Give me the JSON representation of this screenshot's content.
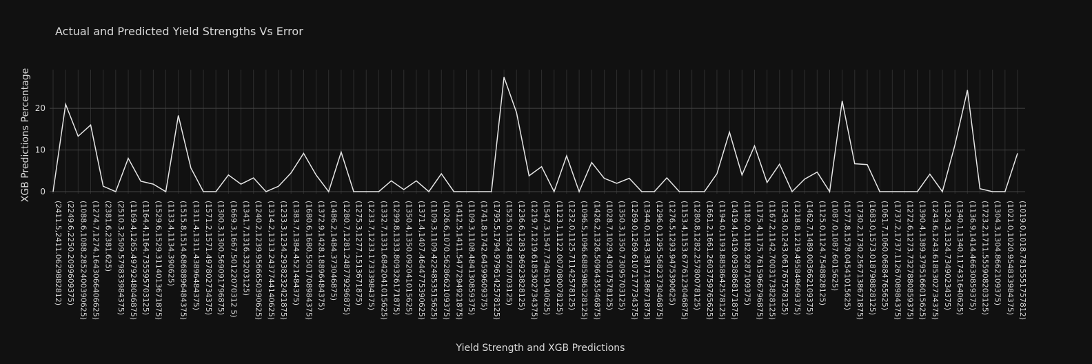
{
  "chart_data": {
    "type": "line",
    "title": "Actual and Predicted Yield Strengths Vs Error",
    "x_label": "Yield Strength and XGB Predictions",
    "y_label": "XGB Predictions Percentage",
    "color": "#e6e6e6",
    "grid": true,
    "ylim": [
      -0.5,
      29.3
    ],
    "yticks": [
      0,
      10,
      20
    ],
    "categories": [
      "(2411.5,2411.0629882812)",
      "(2249.6,2250.2099609375)",
      "(1088.6,1088.2852400390625)",
      "(1274.7,1274.1643066406625)",
      "(2381.6,2381.625)",
      "(2510.3,2509.579833984375)",
      "(1169.4,1265.4979248046875)",
      "(1164.4,1164.735595703125)",
      "(1529.6,1529.3114013671875)",
      "(1133.4,1134.390625)",
      "(1515.8,1514.6868896484375)",
      "(1311.4,1311.43896484375)",
      "(1571.2,1571.497802734375)",
      "(1300.3,1300.569091796875)",
      "(1669.3,1667.50122070312 5)",
      "(1341.7,1316.33203125)",
      "(1240.2,1239.9566650390625)",
      "(1314.2,1313.2437744140625)",
      "(1233.3,1234.2938232421875)",
      "(1383.7,1384.4521484375)",
      "(1680.6,1680.5501708984375)",
      "(1372.9,1428.18896484375)",
      "(1486.2,1484.373046875)",
      "(1280.7,1281.248779296875)",
      "(1275.3,1277.1513671875)",
      "(1233.7,1233.17333984375)",
      "(1332.7,1331.6842041015625)",
      "(1299.8,1333.809326171875)",
      "(1350.4,1350.092041015625)",
      "(1371.4,1407.4644775390625)",
      "(1109.3,1109.4224853515625)",
      "(1026.6,1070.5628662109375)",
      "(1412.5,1411.5477294921875)",
      "(1109.3,1108.484130859375)",
      "(1741.8,1742.64599609375)",
      "(1795.5,1794.9796142578125)",
      "(1525.0,1524.8720703125)",
      "(1236.6,1283.96923828125)",
      "(1219.7,1219.6185302734375)",
      "(1547.3,1547.734619140625)",
      "(1123.1,1122.007080078125)",
      "(1232.0,1125.71142578125)",
      "(1096.5,1096.6885986328125)",
      "(1426.2,1326.5096435546875)",
      "(1028.7,1029.43017578125)",
      "(1350.3,1350.73095703125)",
      "(1269.0,1269.6107177734375)",
      "(1344.0,1343.3817138671875)",
      "(1296.0,1295.5682373046875)",
      "(1276.5,1293.9475390625)",
      "(1153.4,1153.6776123046875)",
      "(1280.8,1282.25780078125)",
      "(1661.2,1661.2603759765625)",
      "(1194.0,1193.8858642578125)",
      "(1419.4,1419.0938868171875)",
      "(1182.0,1182.9287109375)",
      "(1175.4,1175.7615966796875)",
      "(1167.2,1142.7003173828125)",
      "(1243.0,1243.061767578125)",
      "(1218.8,1219.495849609375)",
      "(1462.7,1489.003662109375)",
      "(1125.0,1124.7548828125)",
      "(1087.0,1087.6015625)",
      "(1577.8,1578.04541015625)",
      "(1730.2,1730.2567138671875)",
      "(1683.0,1573.018798828125)",
      "(1061.7,1060.06884765625)",
      "(1737.2,1737.1126708984375)",
      "(1272.6,1273.7327880859375)",
      "(1390.4,1389.3795166015625)",
      "(1243.6,1243.6185302734375)",
      "(1324.3,1324.73490234375)",
      "(1340.1,1340.117431640625)",
      "(1136.9,1414.46630859375)",
      "(1723.2,1711.555908203125)",
      "(1304.3,1304.8662109375)",
      "(1021.0,1020.954833984375)",
      "(1019.0,1018.7815551757812)"
    ],
    "values": [
      0,
      21,
      13.3,
      16,
      1.3,
      0,
      8,
      2.5,
      1.8,
      0,
      18.3,
      5.7,
      0,
      0,
      4,
      1.8,
      3.3,
      0,
      1.3,
      4.5,
      9.2,
      4,
      0,
      9.5,
      0,
      0,
      0,
      2.6,
      0.5,
      2.6,
      0,
      4.3,
      0,
      0,
      0,
      0,
      27.5,
      19,
      3.8,
      6,
      0,
      8.6,
      0,
      7,
      3.2,
      2,
      3.2,
      0,
      0,
      3.3,
      0,
      0,
      0,
      4.3,
      14.3,
      4,
      11,
      2.2,
      6.6,
      0,
      3,
      4.7,
      0,
      21.8,
      6.7,
      6.5,
      0,
      0,
      0,
      0,
      4.2,
      0,
      11.2,
      24.4,
      0.7,
      0,
      0,
      9.2
    ]
  }
}
